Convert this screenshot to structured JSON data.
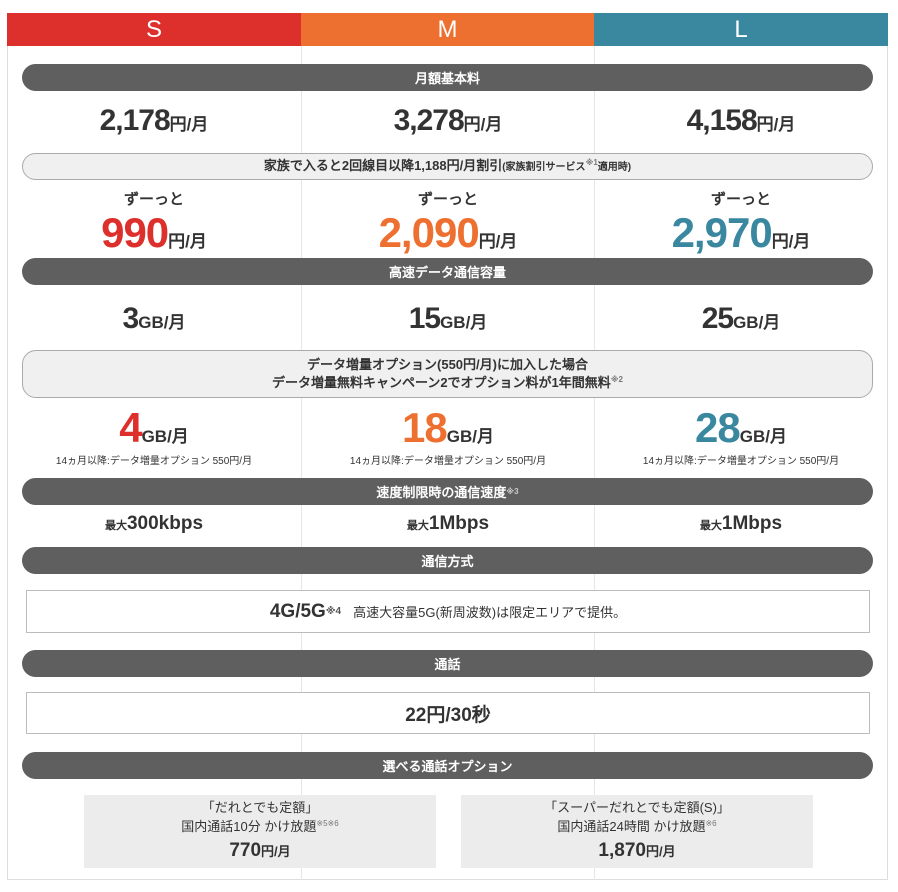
{
  "plans": [
    {
      "name": "S",
      "color": "#dd2f2b",
      "base_price": "2,178",
      "family_prefix": "ずーっと",
      "family_price": "990",
      "data": "3",
      "data_with_option": "4",
      "option_note": "14ヵ月以降:データ増量オプション 550円/月",
      "speed_prefix": "最大",
      "speed": "300kbps"
    },
    {
      "name": "M",
      "color": "#ee7030",
      "base_price": "3,278",
      "family_prefix": "ずーっと",
      "family_price": "2,090",
      "data": "15",
      "data_with_option": "18",
      "option_note": "14ヵ月以降:データ増量オプション 550円/月",
      "speed_prefix": "最大",
      "speed": "1Mbps"
    },
    {
      "name": "L",
      "color": "#3a87a0",
      "base_price": "4,158",
      "family_prefix": "ずーっと",
      "family_price": "2,970",
      "data": "25",
      "data_with_option": "28",
      "option_note": "14ヵ月以降:データ増量オプション 550円/月",
      "speed_prefix": "最大",
      "speed": "1Mbps"
    }
  ],
  "units": {
    "yen_month": "円/月",
    "gb_month": "GB/月"
  },
  "sections": {
    "base_fee": "月額基本料",
    "family_discount": "家族で入ると2回線目以降1,188円/月割引",
    "family_discount_small": "(家族割引サービス",
    "family_note_mark": "※1",
    "family_discount_tail": "適用時)",
    "data_capacity": "高速データ通信容量",
    "option_line1": "データ増量オプション(550円/月)に加入した場合",
    "option_line2": "データ増量無料キャンペーン2でオプション料が1年間無料",
    "option_mark": "※2",
    "speed_limit": "速度制限時の通信速度",
    "speed_mark": "※3",
    "network": "通信方式",
    "network_value": "4G/5G",
    "network_mark": "※4",
    "network_note": "高速大容量5G(新周波数)は限定エリアで提供。",
    "call": "通話",
    "call_value": "22円/30秒",
    "call_options": "選べる通話オプション"
  },
  "call_options": [
    {
      "name": "「だれとでも定額」",
      "desc": "国内通話10分 かけ放題",
      "mark": "※5※6",
      "price": "770"
    },
    {
      "name": "「スーパーだれとでも定額(S)」",
      "desc": "国内通話24時間 かけ放題",
      "mark": "※6",
      "price": "1,870"
    }
  ]
}
